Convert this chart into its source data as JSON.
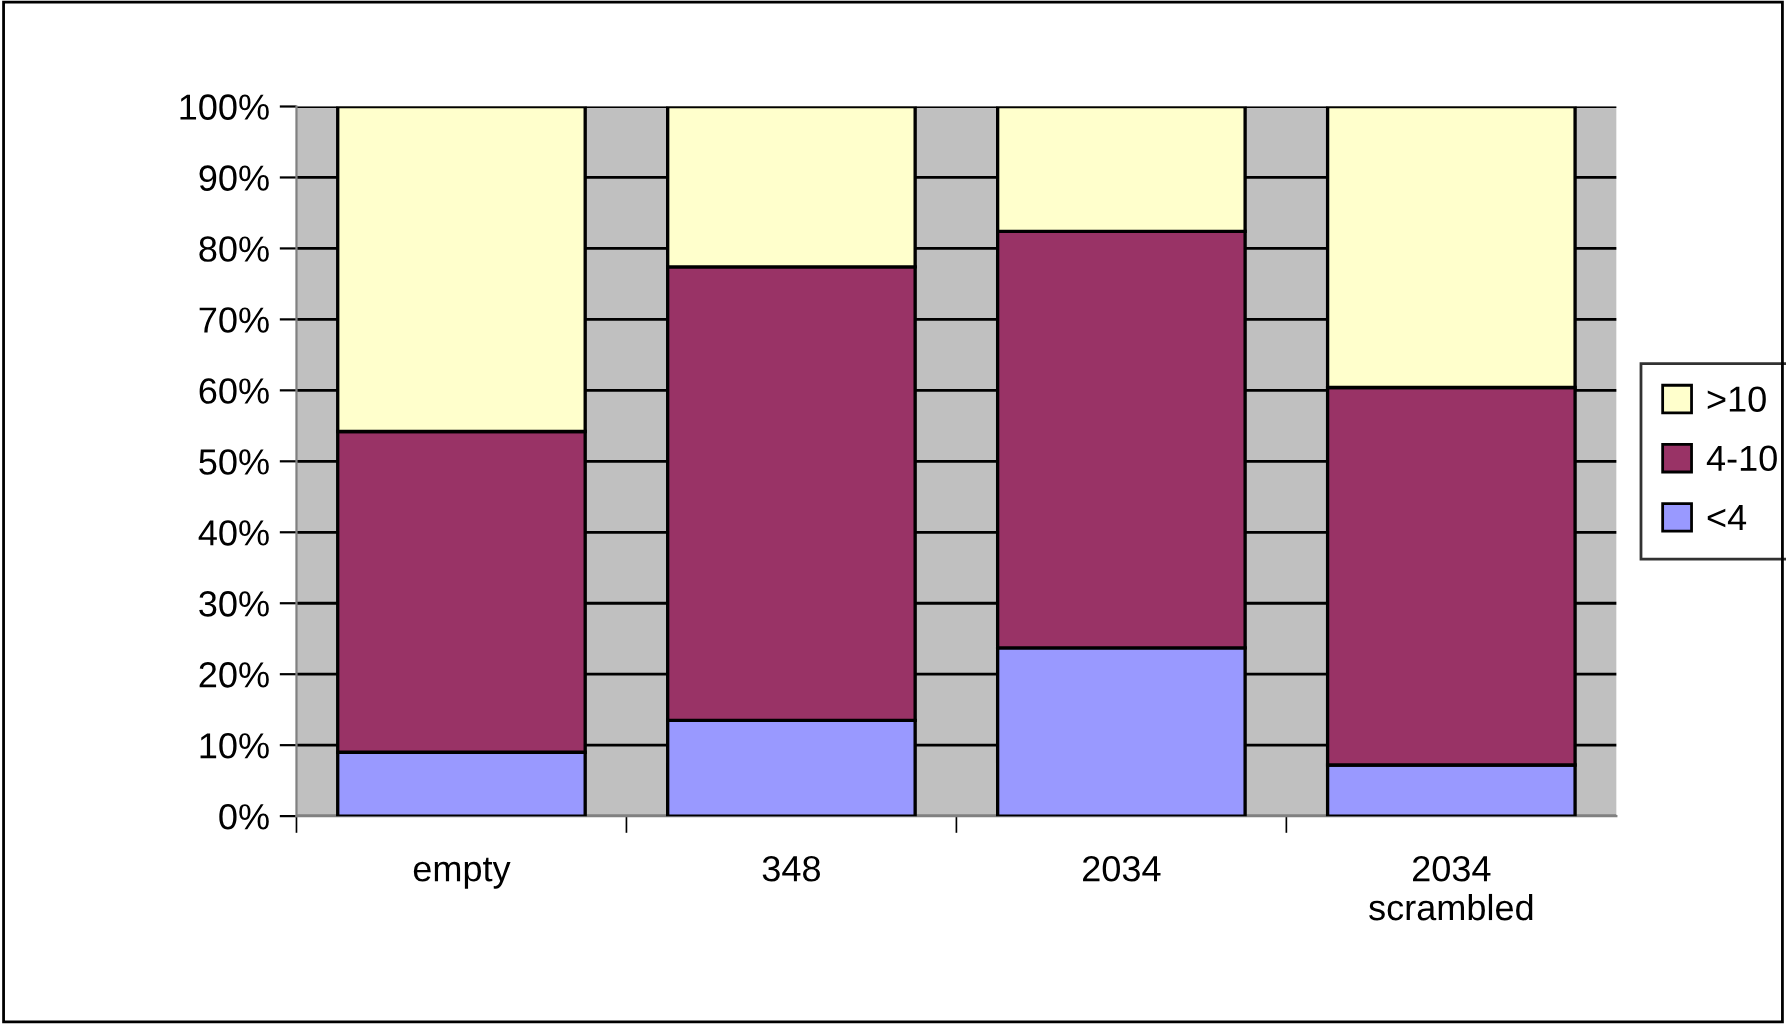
{
  "chart_data": {
    "type": "bar",
    "stacked": true,
    "categories": [
      "empty",
      "348",
      "2034",
      "2034 scrambled"
    ],
    "series": [
      {
        "name": "<4",
        "color": "#9999ff",
        "values": [
          9.0,
          13.5,
          23.7,
          7.2
        ]
      },
      {
        "name": "4-10",
        "color": "#993366",
        "values": [
          45.2,
          63.9,
          58.7,
          53.2
        ]
      },
      {
        "name": ">10",
        "color": "#ffffcc",
        "values": [
          45.8,
          22.6,
          17.6,
          39.6
        ]
      }
    ],
    "ylim": [
      0,
      100
    ],
    "yticks": [
      {
        "value": 0,
        "label": "0%"
      },
      {
        "value": 10,
        "label": "10%"
      },
      {
        "value": 20,
        "label": "20%"
      },
      {
        "value": 30,
        "label": "30%"
      },
      {
        "value": 40,
        "label": "40%"
      },
      {
        "value": 50,
        "label": "50%"
      },
      {
        "value": 60,
        "label": "60%"
      },
      {
        "value": 70,
        "label": "70%"
      },
      {
        "value": 80,
        "label": "80%"
      },
      {
        "value": 90,
        "label": "90%"
      },
      {
        "value": 100,
        "label": "100%"
      }
    ],
    "grid": "y",
    "legend": "right"
  }
}
